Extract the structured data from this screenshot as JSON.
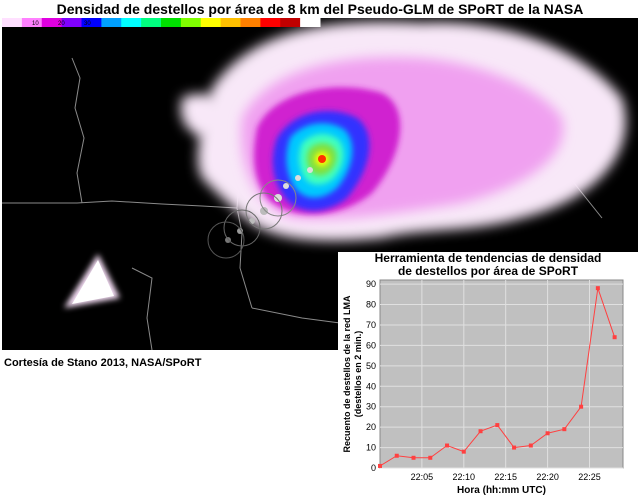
{
  "title": "Densidad de destellos por área de 8 km del Pseudo-GLM de SPoRT de la NASA",
  "credit": "Cortesía de Stano 2013, NASA/SPoRT",
  "colorbar": {
    "colors": [
      "#ffe0ff",
      "#ff80ff",
      "#e000e0",
      "#8000ff",
      "#0000ff",
      "#00a0ff",
      "#00ffff",
      "#00ff80",
      "#00e000",
      "#80ff00",
      "#ffff00",
      "#ffc000",
      "#ff8000",
      "#ff0000",
      "#c00000",
      "#ffffff"
    ],
    "tick_labels": [
      "10",
      "20",
      "30"
    ]
  },
  "trend": {
    "title_line1": "Herramienta de tendencias de densidad",
    "title_line2": "de destellos por área de SPoRT"
  },
  "chart_data": {
    "type": "line",
    "xlabel": "Hora (hh:mm UTC)",
    "ylabel_line1": "Recuento de destellos de la red LMA",
    "ylabel_line2": "(destellos en 2 min.)",
    "ylim": [
      0,
      92
    ],
    "yticks": [
      0,
      10,
      20,
      30,
      40,
      50,
      60,
      70,
      80,
      90
    ],
    "xlim": [
      "22:00",
      "22:29"
    ],
    "xticks": [
      "22:05",
      "22:10",
      "22:15",
      "22:20",
      "22:25"
    ],
    "grid": true,
    "series_color": "#ff4040",
    "series": [
      {
        "x": [
          "22:00",
          "22:02",
          "22:04",
          "22:06",
          "22:08",
          "22:10",
          "22:12",
          "22:14",
          "22:16",
          "22:18",
          "22:20",
          "22:22",
          "22:24",
          "22:26",
          "22:28"
        ],
        "values": [
          1,
          6,
          5,
          5,
          11,
          8,
          18,
          21,
          10,
          11,
          17,
          19,
          30,
          88,
          64
        ]
      }
    ]
  }
}
